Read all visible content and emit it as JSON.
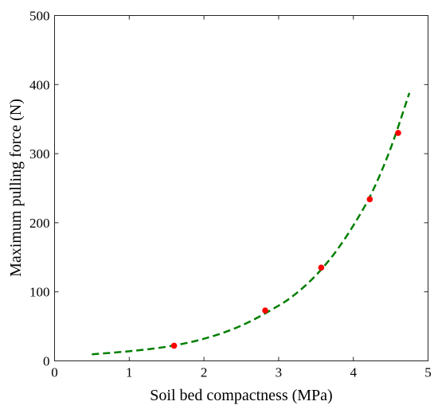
{
  "chart_data": {
    "type": "scatter",
    "xlabel": "Soil bed compactness (MPa)",
    "ylabel": "Maximum pulling force (N)",
    "xlim": [
      0,
      5
    ],
    "ylim": [
      0,
      500
    ],
    "xticks": [
      "0",
      "1",
      "2",
      "3",
      "4",
      "5"
    ],
    "yticks": [
      "0",
      "100",
      "200",
      "300",
      "400",
      "500"
    ],
    "grid": false,
    "legend": "none",
    "series": [
      {
        "kind": "scatter",
        "color": "#ff0000",
        "x": [
          1.6,
          2.82,
          3.57,
          4.22,
          4.6
        ],
        "y": [
          22,
          73,
          135,
          234,
          330
        ]
      },
      {
        "kind": "fit-line",
        "style": "dashed",
        "color": "#007f00",
        "x": [
          0.5,
          1.0,
          1.5,
          2.0,
          2.5,
          3.0,
          3.25,
          3.5,
          3.75,
          4.0,
          4.25,
          4.5,
          4.75
        ],
        "y": [
          9.5,
          14,
          20.5,
          32,
          51,
          80,
          99,
          124,
          156,
          196,
          244,
          308,
          388
        ]
      }
    ]
  }
}
